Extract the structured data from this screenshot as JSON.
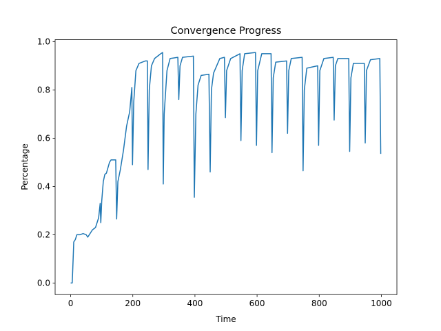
{
  "chart_data": {
    "type": "line",
    "title": "Convergence Progress",
    "x_label": "Time",
    "y_label": "Percentage",
    "xlim": [
      -50,
      1050
    ],
    "ylim": [
      -0.048,
      1.008
    ],
    "xticks": [
      0,
      200,
      400,
      600,
      800,
      1000
    ],
    "yticks": [
      {
        "value": 0,
        "label": "0.0"
      },
      {
        "value": 0.2,
        "label": "0.2"
      },
      {
        "value": 0.4,
        "label": "0.4"
      },
      {
        "value": 0.6,
        "label": "0.6"
      },
      {
        "value": 0.8,
        "label": "0.8"
      },
      {
        "value": 1,
        "label": "1.0"
      }
    ],
    "series": [
      {
        "color": "#1f77b4",
        "x": [
          0,
          5,
          8,
          10,
          15,
          20,
          30,
          40,
          50,
          55,
          60,
          70,
          80,
          90,
          95,
          97,
          100,
          105,
          110,
          115,
          125,
          130,
          145,
          148,
          152,
          160,
          170,
          180,
          190,
          197,
          199,
          203,
          210,
          220,
          240,
          247,
          249,
          253,
          260,
          270,
          290,
          296,
          298,
          301,
          310,
          320,
          345,
          348,
          352,
          360,
          395,
          398,
          403,
          410,
          420,
          445,
          449,
          453,
          460,
          470,
          480,
          495,
          498,
          502,
          515,
          545,
          548,
          552,
          560,
          595,
          598,
          602,
          615,
          645,
          648,
          652,
          660,
          695,
          698,
          702,
          710,
          745,
          748,
          752,
          760,
          795,
          798,
          802,
          815,
          845,
          848,
          852,
          860,
          895,
          898,
          902,
          910,
          945,
          948,
          952,
          965,
          995,
          998
        ],
        "values": [
          0,
          0,
          0.1,
          0.17,
          0.18,
          0.2,
          0.2,
          0.205,
          0.2,
          0.19,
          0.2,
          0.22,
          0.23,
          0.27,
          0.33,
          0.25,
          0.34,
          0.42,
          0.45,
          0.455,
          0.5,
          0.51,
          0.51,
          0.265,
          0.42,
          0.47,
          0.55,
          0.65,
          0.71,
          0.81,
          0.49,
          0.75,
          0.88,
          0.91,
          0.92,
          0.92,
          0.47,
          0.8,
          0.9,
          0.93,
          0.95,
          0.955,
          0.41,
          0.7,
          0.88,
          0.93,
          0.935,
          0.76,
          0.9,
          0.935,
          0.94,
          0.355,
          0.7,
          0.82,
          0.86,
          0.865,
          0.46,
          0.8,
          0.87,
          0.9,
          0.93,
          0.935,
          0.685,
          0.88,
          0.93,
          0.95,
          0.59,
          0.88,
          0.95,
          0.955,
          0.57,
          0.88,
          0.95,
          0.95,
          0.54,
          0.85,
          0.915,
          0.92,
          0.62,
          0.88,
          0.93,
          0.935,
          0.465,
          0.8,
          0.89,
          0.9,
          0.57,
          0.88,
          0.93,
          0.935,
          0.675,
          0.9,
          0.93,
          0.93,
          0.545,
          0.85,
          0.91,
          0.91,
          0.58,
          0.88,
          0.925,
          0.93,
          0.535
        ]
      }
    ]
  }
}
